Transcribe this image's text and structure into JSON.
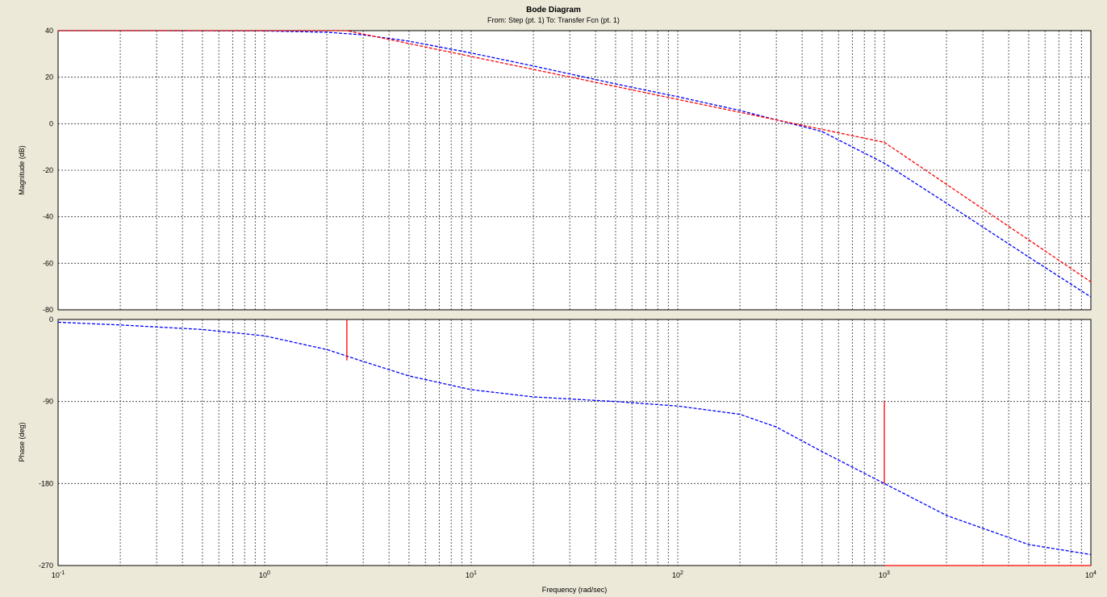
{
  "chart_data": {
    "type": "line",
    "title": "Bode Diagram",
    "subtitle": "From: Step (pt. 1) To: Transfer Fcn (pt. 1)",
    "xlabel": "Frequency (rad/sec)",
    "x_scale": "log",
    "xlim": [
      0.1,
      10000
    ],
    "x_ticks": [
      "10^-1",
      "10^0",
      "10^1",
      "10^2",
      "10^3",
      "10^4"
    ],
    "colors": {
      "actual": "#0000ff",
      "asymptote": "#ff0000"
    },
    "panels": [
      {
        "name": "magnitude",
        "ylabel": "Magnitude (dB)",
        "ylim": [
          -80,
          40
        ],
        "y_ticks": [
          "40",
          "20",
          "0",
          "-20",
          "-40",
          "-60",
          "-80"
        ],
        "series": [
          {
            "style": "dashed",
            "color": "#0000ff",
            "x": [
              0.1,
              0.3,
              1,
              2,
              3,
              5,
              10,
              20,
              50,
              100,
              200,
              500,
              1000,
              2000,
              5000,
              10000
            ],
            "y": [
              40,
              40,
              39.9,
              39.3,
              38.2,
              35.5,
              30.4,
              24.8,
              17.1,
              11.6,
              5.7,
              -3.4,
              -17,
              -34.2,
              -57.3,
              -74.5
            ]
          },
          {
            "style": "dashed",
            "color": "#ff0000",
            "x": [
              0.1,
              2.5,
              1000,
              10000
            ],
            "y": [
              40,
              40,
              -8,
              -68
            ]
          }
        ]
      },
      {
        "name": "phase",
        "ylabel": "Phase (deg)",
        "ylim": [
          -270,
          0
        ],
        "y_ticks": [
          "0",
          "-90",
          "-180",
          "-270"
        ],
        "series": [
          {
            "style": "dashed",
            "color": "#0000ff",
            "x": [
              0.1,
              0.2,
              0.5,
              1,
              2,
              3,
              5,
              10,
              20,
              50,
              100,
              200,
              300,
              500,
              1000,
              2000,
              5000,
              10000
            ],
            "y": [
              -3,
              -6,
              -11,
              -18,
              -33,
              -46,
              -62,
              -77,
              -85,
              -90,
              -95,
              -104,
              -118,
              -145,
              -180,
              -215,
              -247,
              -258
            ]
          },
          {
            "style": "solid",
            "color": "#ff0000",
            "segments": [
              {
                "x": [
                  2.5,
                  2.5
                ],
                "y": [
                  0,
                  -45
                ]
              },
              {
                "x": [
                  1000,
                  1000
                ],
                "y": [
                  -90,
                  -180
                ]
              },
              {
                "x": [
                  1000,
                  10000
                ],
                "y": [
                  -270,
                  -270
                ]
              }
            ]
          }
        ]
      }
    ]
  }
}
